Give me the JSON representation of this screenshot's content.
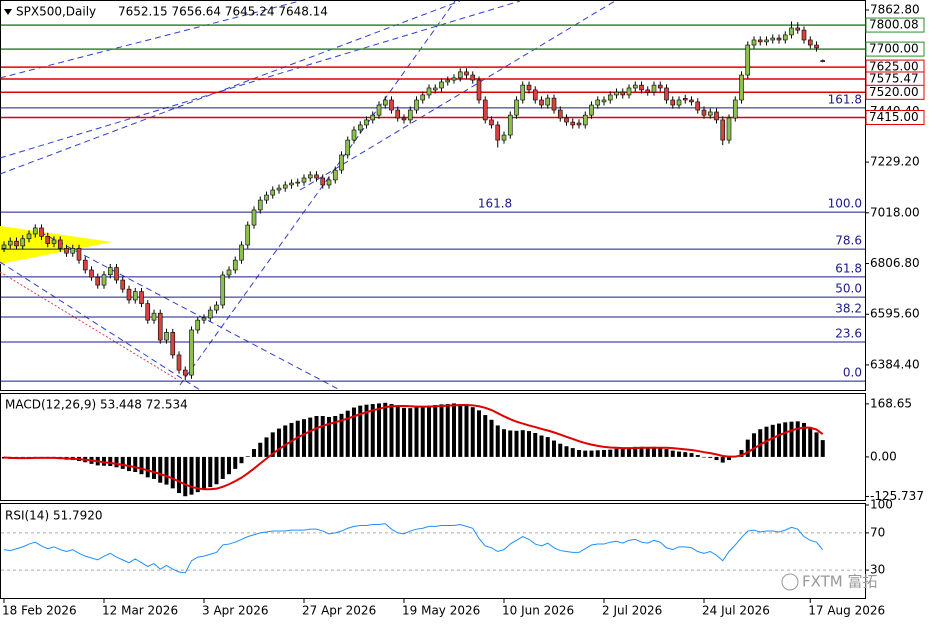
{
  "chart_data": [
    {
      "type": "candlestick",
      "title": "SPX500,Daily",
      "subtitle": "7652.15 7656.64 7645.24 7648.14",
      "open": [
        6870,
        6884,
        6900,
        6880,
        6910,
        6930,
        6955,
        6920,
        6890,
        6905,
        6870,
        6850,
        6870,
        6821,
        6780,
        6750,
        6717,
        6760,
        6790,
        6738,
        6700,
        6655,
        6690,
        6640,
        6571,
        6600,
        6488,
        6520,
        6426,
        6363,
        6342,
        6530,
        6571,
        6580,
        6613,
        6634,
        6759,
        6780,
        6821,
        6884,
        6967,
        7030,
        7071,
        7092,
        7113,
        7121,
        7134,
        7142,
        7146,
        7163,
        7176,
        7163,
        7134,
        7155,
        7196,
        7259,
        7321,
        7363,
        7384,
        7405,
        7425,
        7467,
        7488,
        7446,
        7413,
        7405,
        7446,
        7488,
        7509,
        7530,
        7538,
        7563,
        7571,
        7580,
        7605,
        7592,
        7571,
        7488,
        7405,
        7384,
        7321,
        7342,
        7425,
        7488,
        7550,
        7530,
        7488,
        7467,
        7496,
        7446,
        7413,
        7396,
        7392,
        7384,
        7425,
        7467,
        7480,
        7488,
        7509,
        7521,
        7509,
        7538,
        7550,
        7530,
        7521,
        7550,
        7538,
        7488,
        7467,
        7495,
        7488,
        7480,
        7446,
        7425,
        7438,
        7405,
        7321,
        7413,
        7488,
        7592,
        7717,
        7738,
        7730,
        7738,
        7746,
        7738,
        7759,
        7788,
        7779,
        7738,
        7717,
        7652.15
      ],
      "high": [
        6899,
        6915,
        6915,
        6925,
        6945,
        6970,
        6970,
        6935,
        6920,
        6920,
        6885,
        6885,
        6885,
        6836,
        6795,
        6765,
        6775,
        6805,
        6805,
        6753,
        6715,
        6705,
        6705,
        6655,
        6615,
        6615,
        6535,
        6535,
        6441,
        6378,
        6545,
        6586,
        6595,
        6628,
        6649,
        6774,
        6795,
        6836,
        6899,
        6982,
        7045,
        7086,
        7107,
        7128,
        7136,
        7149,
        7157,
        7161,
        7178,
        7191,
        7191,
        7178,
        7170,
        7211,
        7274,
        7336,
        7378,
        7399,
        7420,
        7440,
        7482,
        7503,
        7503,
        7461,
        7428,
        7461,
        7503,
        7524,
        7553,
        7553,
        7578,
        7586,
        7595,
        7620,
        7620,
        7607,
        7586,
        7503,
        7420,
        7399,
        7357,
        7440,
        7503,
        7565,
        7565,
        7545,
        7503,
        7511,
        7511,
        7461,
        7428,
        7411,
        7407,
        7440,
        7482,
        7503,
        7503,
        7524,
        7536,
        7536,
        7553,
        7565,
        7565,
        7545,
        7565,
        7565,
        7553,
        7503,
        7503,
        7510,
        7503,
        7495,
        7461,
        7453,
        7453,
        7420,
        7428,
        7503,
        7607,
        7732,
        7753,
        7753,
        7753,
        7761,
        7761,
        7774,
        7815,
        7812,
        7794,
        7753,
        7732,
        7656.64
      ],
      "low": [
        6855,
        6869,
        6865,
        6865,
        6895,
        6915,
        6905,
        6875,
        6875,
        6855,
        6835,
        6835,
        6806,
        6765,
        6735,
        6702,
        6702,
        6745,
        6723,
        6685,
        6640,
        6640,
        6625,
        6556,
        6556,
        6473,
        6473,
        6411,
        6348,
        6322,
        6327,
        6515,
        6556,
        6565,
        6598,
        6619,
        6744,
        6765,
        6806,
        6869,
        6952,
        7015,
        7056,
        7077,
        7098,
        7106,
        7119,
        7127,
        7131,
        7148,
        7148,
        7119,
        7119,
        7140,
        7181,
        7244,
        7306,
        7348,
        7369,
        7390,
        7410,
        7452,
        7431,
        7398,
        7390,
        7390,
        7431,
        7473,
        7494,
        7515,
        7523,
        7548,
        7556,
        7565,
        7577,
        7556,
        7473,
        7390,
        7369,
        7290,
        7306,
        7327,
        7410,
        7473,
        7515,
        7473,
        7452,
        7452,
        7431,
        7398,
        7381,
        7369,
        7369,
        7369,
        7410,
        7452,
        7465,
        7473,
        7494,
        7494,
        7494,
        7523,
        7515,
        7506,
        7506,
        7523,
        7473,
        7452,
        7452,
        7473,
        7465,
        7431,
        7410,
        7410,
        7390,
        7300,
        7306,
        7398,
        7473,
        7577,
        7702,
        7715,
        7715,
        7723,
        7723,
        7723,
        7744,
        7764,
        7723,
        7702,
        7690,
        7645.24
      ],
      "close": [
        6884,
        6900,
        6880,
        6910,
        6930,
        6955,
        6920,
        6890,
        6905,
        6870,
        6850,
        6870,
        6821,
        6780,
        6750,
        6717,
        6760,
        6790,
        6738,
        6700,
        6655,
        6690,
        6640,
        6571,
        6600,
        6488,
        6520,
        6426,
        6363,
        6342,
        6530,
        6571,
        6580,
        6613,
        6634,
        6759,
        6780,
        6821,
        6884,
        6967,
        7030,
        7071,
        7092,
        7113,
        7121,
        7134,
        7142,
        7146,
        7163,
        7176,
        7163,
        7134,
        7155,
        7196,
        7259,
        7321,
        7363,
        7384,
        7405,
        7425,
        7467,
        7488,
        7446,
        7413,
        7405,
        7446,
        7488,
        7509,
        7538,
        7538,
        7563,
        7571,
        7580,
        7605,
        7592,
        7571,
        7488,
        7405,
        7384,
        7321,
        7342,
        7425,
        7488,
        7550,
        7530,
        7488,
        7467,
        7496,
        7446,
        7413,
        7396,
        7384,
        7384,
        7425,
        7467,
        7488,
        7488,
        7509,
        7521,
        7509,
        7538,
        7550,
        7530,
        7521,
        7550,
        7538,
        7488,
        7467,
        7488,
        7488,
        7480,
        7446,
        7425,
        7438,
        7405,
        7321,
        7413,
        7488,
        7592,
        7717,
        7738,
        7730,
        7738,
        7746,
        7738,
        7759,
        7788,
        7779,
        7738,
        7717,
        7705,
        7648.14
      ],
      "bull_color": "#8cc152",
      "bear_color": "#d9433f",
      "ylim": [
        6280,
        7892
      ],
      "yticks": [
        {
          "value": 7862.8,
          "label": "7862.80"
        },
        {
          "value": 7440.4,
          "label": "7440.40"
        },
        {
          "value": 7229.2,
          "label": "7229.20"
        },
        {
          "value": 7018,
          "label": "7018.00"
        },
        {
          "value": 6806.8,
          "label": "6806.80"
        },
        {
          "value": 6595.6,
          "label": "6595.60"
        },
        {
          "value": 6384.4,
          "label": "6384.40"
        }
      ],
      "hlines": [
        {
          "value": 7800.08,
          "label": "7800.08",
          "color": "#2e8b2e"
        },
        {
          "value": 7700,
          "label": "7700.00",
          "color": "#2e8b2e"
        },
        {
          "value": 7625,
          "label": "7625.00",
          "color": "#e00000"
        },
        {
          "value": 7575.47,
          "label": "7575.47",
          "color": "#e00000"
        },
        {
          "value": 7520,
          "label": "7520.00",
          "color": "#e00000"
        },
        {
          "value": 7415,
          "label": "7415.00",
          "color": "#e00000"
        }
      ],
      "fib_levels": [
        {
          "value": 7455,
          "label": "161.8"
        },
        {
          "value": 7021,
          "label": "100.0"
        },
        {
          "value": 6867,
          "label": "78.6"
        },
        {
          "value": 6751,
          "label": "61.8"
        },
        {
          "value": 6667,
          "label": "50.0"
        },
        {
          "value": 6584,
          "label": "38.2"
        },
        {
          "value": 6480,
          "label": "23.6"
        },
        {
          "value": 6317,
          "label": "0.0"
        }
      ],
      "fib_color": "#1a1a8c",
      "annotation": {
        "value": 7021,
        "label": "161.8"
      }
    },
    {
      "type": "macd",
      "title": "MACD(12,26,9) 53.448 72.534",
      "values": [
        -5,
        -6,
        -6,
        -5,
        -3,
        -1,
        -2,
        -4,
        -5,
        -7,
        -9,
        -10,
        -13,
        -17,
        -22,
        -27,
        -28,
        -29,
        -33,
        -38,
        -45,
        -48,
        -55,
        -65,
        -70,
        -82,
        -88,
        -100,
        -115,
        -125,
        -120,
        -112,
        -105,
        -96,
        -87,
        -70,
        -55,
        -38,
        -20,
        2,
        25,
        45,
        62,
        78,
        90,
        100,
        108,
        115,
        120,
        125,
        130,
        130,
        127,
        130,
        137,
        147,
        157,
        163,
        166,
        168,
        170,
        172,
        168,
        162,
        156,
        155,
        157,
        160,
        163,
        165,
        167,
        168,
        170,
        168,
        164,
        158,
        148,
        133,
        118,
        100,
        88,
        84,
        83,
        85,
        82,
        76,
        68,
        63,
        52,
        42,
        34,
        28,
        22,
        20,
        20,
        21,
        22,
        23,
        26,
        28,
        30,
        32,
        32,
        30,
        32,
        30,
        25,
        20,
        17,
        15,
        12,
        6,
        0,
        -3,
        -10,
        -18,
        -10,
        2,
        22,
        55,
        75,
        88,
        96,
        102,
        106,
        110,
        112,
        113,
        108,
        95,
        78,
        53.448
      ],
      "signal": [
        -2,
        -3,
        -4,
        -4,
        -4,
        -3,
        -3,
        -3,
        -3,
        -4,
        -5,
        -6,
        -7,
        -9,
        -11,
        -14,
        -17,
        -19,
        -22,
        -25,
        -29,
        -33,
        -37,
        -43,
        -48,
        -55,
        -61,
        -69,
        -78,
        -88,
        -95,
        -100,
        -103,
        -103,
        -101,
        -95,
        -87,
        -77,
        -66,
        -52,
        -37,
        -21,
        -5,
        10,
        25,
        38,
        50,
        62,
        72,
        82,
        91,
        99,
        105,
        110,
        116,
        122,
        129,
        136,
        142,
        148,
        153,
        158,
        161,
        162,
        162,
        161,
        160,
        160,
        160,
        161,
        162,
        163,
        164,
        165,
        165,
        164,
        161,
        156,
        149,
        139,
        129,
        120,
        112,
        106,
        100,
        95,
        89,
        84,
        78,
        71,
        64,
        57,
        50,
        44,
        39,
        35,
        32,
        30,
        29,
        28,
        28,
        28,
        29,
        29,
        29,
        29,
        29,
        28,
        26,
        24,
        22,
        19,
        15,
        12,
        8,
        3,
        1,
        1,
        5,
        15,
        27,
        39,
        50,
        60,
        69,
        77,
        84,
        90,
        93,
        93,
        87,
        72.534
      ],
      "color": "#000000",
      "signal_color": "#e00000",
      "ylim": [
        -137,
        200
      ],
      "yticks": [
        168.65,
        {
          "value": 0,
          "label": "0.00"
        },
        -125.737
      ]
    },
    {
      "type": "line",
      "title": "RSI(14) 51.7920",
      "values": [
        52,
        51,
        53,
        55,
        58,
        60,
        56,
        53,
        55,
        52,
        50,
        52,
        48,
        45,
        43,
        41,
        45,
        48,
        44,
        41,
        38,
        42,
        38,
        34,
        37,
        31,
        35,
        31,
        28,
        27,
        40,
        44,
        45,
        47,
        49,
        57,
        58,
        60,
        63,
        66,
        68,
        70,
        71,
        72,
        72,
        72,
        73,
        73,
        73,
        74,
        74,
        72,
        69,
        70,
        72,
        75,
        77,
        78,
        78,
        79,
        79,
        80,
        74,
        70,
        69,
        72,
        74,
        75,
        77,
        77,
        78,
        78,
        78,
        79,
        77,
        75,
        64,
        56,
        54,
        50,
        52,
        58,
        62,
        66,
        63,
        58,
        56,
        59,
        54,
        51,
        50,
        49,
        49,
        53,
        57,
        58,
        58,
        60,
        61,
        59,
        62,
        63,
        60,
        59,
        62,
        60,
        54,
        52,
        55,
        55,
        54,
        50,
        48,
        50,
        46,
        40,
        50,
        57,
        65,
        72,
        73,
        71,
        72,
        72,
        71,
        73,
        76,
        74,
        66,
        62,
        60,
        51.792
      ],
      "color": "#1e90ff",
      "ylim": [
        0,
        100
      ],
      "yticks": [
        100,
        70,
        30
      ],
      "xticks": [
        {
          "value": 0,
          "label": "18 Feb 2026"
        },
        {
          "value": 16,
          "label": "12 Mar 2026"
        },
        {
          "value": 32,
          "label": "3 Apr 2026"
        },
        {
          "value": 48,
          "label": "27 Apr 2026"
        },
        {
          "value": 64,
          "label": "19 May 2026"
        },
        {
          "value": 80,
          "label": "10 Jun 2026"
        },
        {
          "value": 96,
          "label": "2 Jul 2026"
        },
        {
          "value": 112,
          "label": "24 Jul 2026"
        },
        {
          "value": 129,
          "label": "17 Aug 2026"
        }
      ]
    }
  ],
  "watermark": "FXTM 富拓"
}
